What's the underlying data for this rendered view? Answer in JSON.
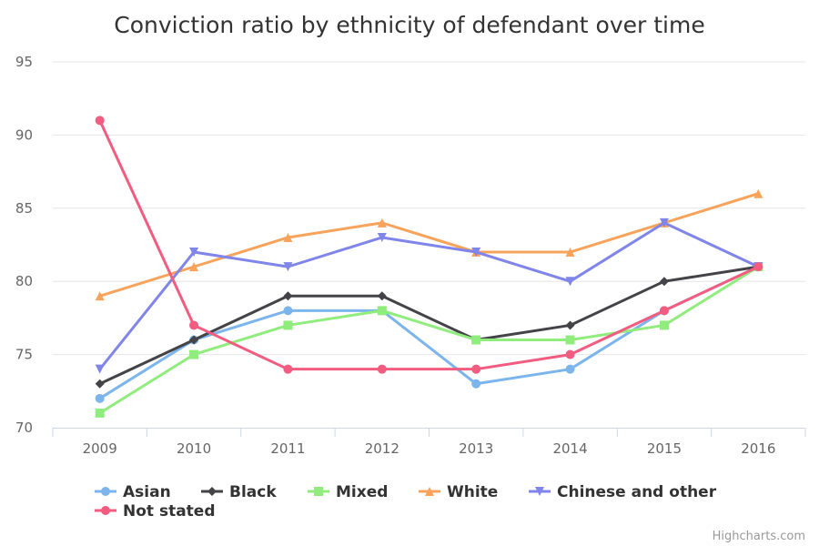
{
  "chart_data": {
    "type": "line",
    "title": "Conviction ratio by ethnicity of defendant over time",
    "x": [
      "2009",
      "2010",
      "2011",
      "2012",
      "2013",
      "2014",
      "2015",
      "2016"
    ],
    "ylim": [
      70,
      95
    ],
    "yticks": [
      70,
      75,
      80,
      85,
      90,
      95
    ],
    "grid": true,
    "legend_position": "bottom",
    "series": [
      {
        "name": "Asian",
        "color": "#7cb5ec",
        "marker": "circle",
        "values": [
          72,
          76,
          78,
          78,
          73,
          74,
          78,
          81
        ]
      },
      {
        "name": "Black",
        "color": "#434348",
        "marker": "diamond",
        "values": [
          73,
          76,
          79,
          79,
          76,
          77,
          80,
          81
        ]
      },
      {
        "name": "Mixed",
        "color": "#90ed7d",
        "marker": "square",
        "values": [
          71,
          75,
          77,
          78,
          76,
          76,
          77,
          81
        ]
      },
      {
        "name": "White",
        "color": "#f7a35c",
        "marker": "triangle",
        "values": [
          79,
          81,
          83,
          84,
          82,
          82,
          84,
          86
        ]
      },
      {
        "name": "Chinese and other",
        "color": "#8085e9",
        "marker": "triangle-down",
        "values": [
          74,
          82,
          81,
          83,
          82,
          80,
          84,
          81
        ]
      },
      {
        "name": "Not stated",
        "color": "#f15c80",
        "marker": "circle",
        "values": [
          91,
          77,
          74,
          74,
          74,
          75,
          78,
          81
        ]
      }
    ]
  },
  "credit": "Highcharts.com"
}
